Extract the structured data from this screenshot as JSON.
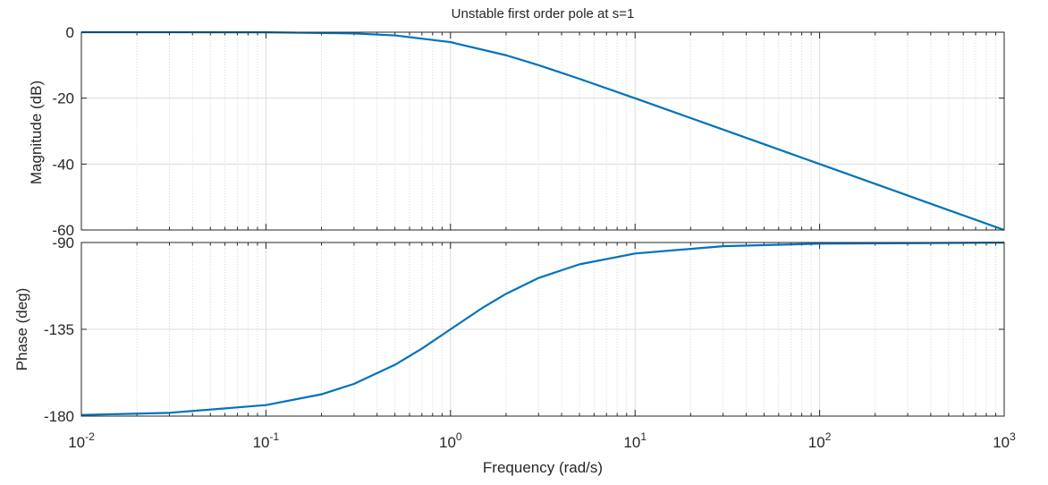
{
  "chart_data": [
    {
      "type": "line",
      "title": "Unstable first order pole at s=1",
      "ylabel": "Magnitude (dB)",
      "xscale": "log",
      "xlim": [
        0.01,
        1000
      ],
      "ylim": [
        -60,
        0
      ],
      "yticks": [
        "0",
        "-20",
        "-40",
        "-60"
      ],
      "grid": true,
      "color": "#0072bd",
      "series": [
        {
          "x": [
            0.01,
            0.03,
            0.1,
            0.3,
            0.5,
            1,
            2,
            3,
            5,
            10,
            30,
            100,
            300,
            1000
          ],
          "y": [
            0,
            0,
            -0.04,
            -0.37,
            -0.97,
            -3.01,
            -6.99,
            -10,
            -14.15,
            -20.04,
            -29.55,
            -40,
            -49.54,
            -60
          ]
        }
      ]
    },
    {
      "type": "line",
      "xlabel": "Frequency  (rad/s)",
      "ylabel": "Phase (deg)",
      "xscale": "log",
      "xlim": [
        0.01,
        1000
      ],
      "ylim": [
        -180,
        -90
      ],
      "yticks": [
        "-90",
        "-135",
        "-180"
      ],
      "xticks": [
        {
          "base": "10",
          "exp": "-2"
        },
        {
          "base": "10",
          "exp": "-1"
        },
        {
          "base": "10",
          "exp": "0"
        },
        {
          "base": "10",
          "exp": "1"
        },
        {
          "base": "10",
          "exp": "2"
        },
        {
          "base": "10",
          "exp": "3"
        }
      ],
      "grid": true,
      "color": "#0072bd",
      "series": [
        {
          "x": [
            0.01,
            0.03,
            0.1,
            0.2,
            0.3,
            0.5,
            0.7,
            1,
            1.5,
            2,
            3,
            5,
            10,
            30,
            100,
            1000
          ],
          "y": [
            -179.4,
            -178.3,
            -174.3,
            -168.7,
            -163.3,
            -153.4,
            -145,
            -135,
            -123.7,
            -116.6,
            -108.4,
            -101.3,
            -95.7,
            -91.9,
            -90.6,
            -90.06
          ]
        }
      ]
    }
  ]
}
